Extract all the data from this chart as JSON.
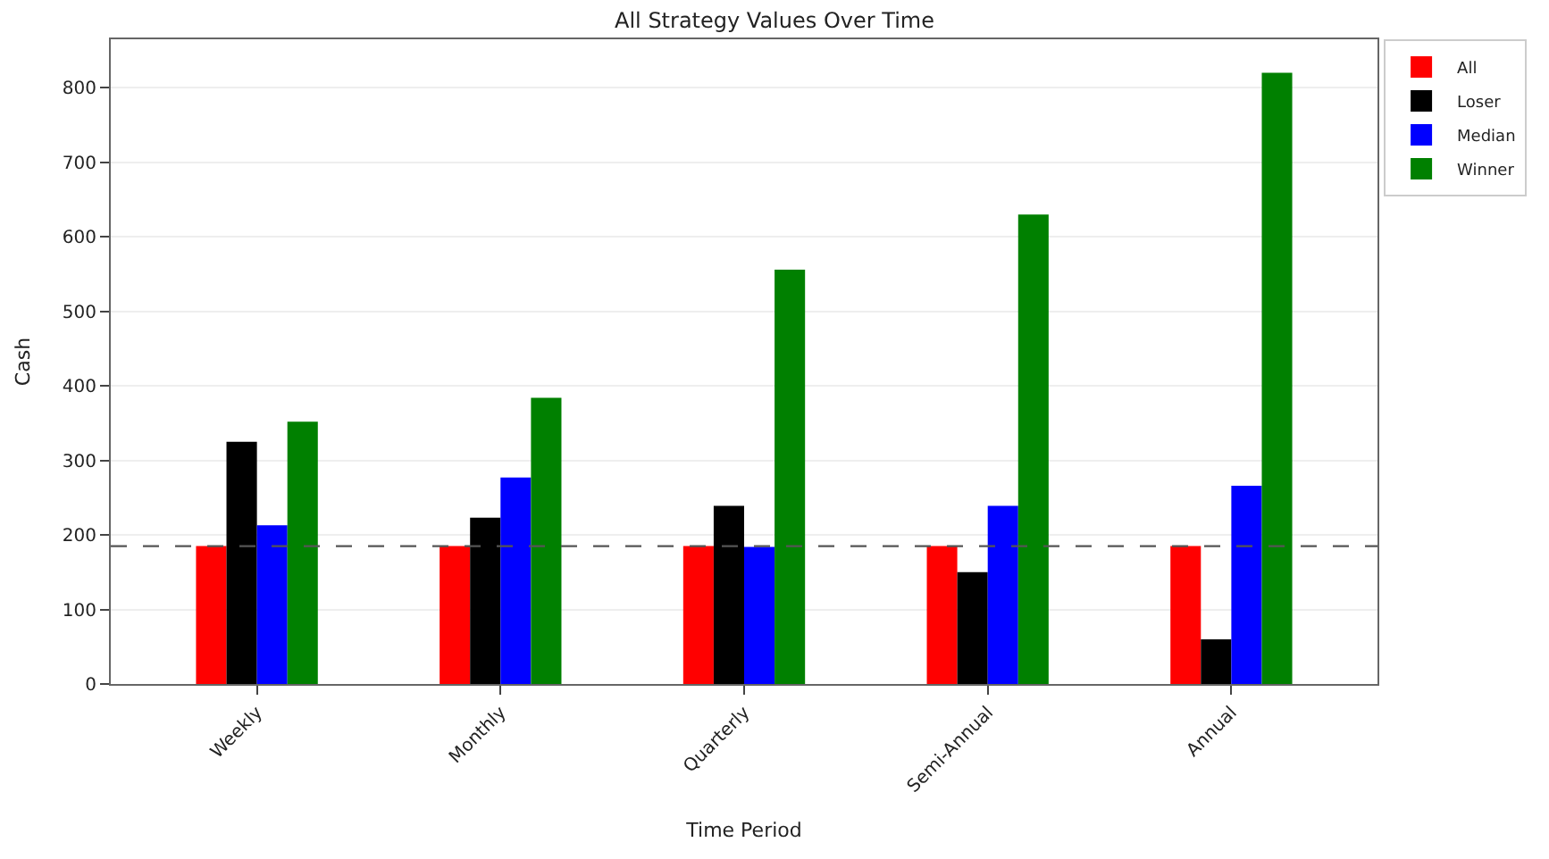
{
  "chart_data": {
    "type": "bar",
    "title": "All Strategy Values Over Time",
    "xlabel": "Time Period",
    "ylabel": "Cash",
    "categories": [
      "Weekly",
      "Monthly",
      "Quarterly",
      "Semi-Annual",
      "Annual"
    ],
    "series": [
      {
        "name": "All",
        "color": "#ff0000",
        "values": [
          185,
          185,
          185,
          185,
          185
        ]
      },
      {
        "name": "Loser",
        "color": "#000000",
        "values": [
          325,
          223,
          239,
          150,
          60
        ]
      },
      {
        "name": "Median",
        "color": "#0000ff",
        "values": [
          213,
          277,
          184,
          239,
          266
        ]
      },
      {
        "name": "Winner",
        "color": "#008000",
        "values": [
          352,
          384,
          556,
          630,
          820
        ]
      }
    ],
    "ylim": [
      0,
      865
    ],
    "yticks": [
      0,
      100,
      200,
      300,
      400,
      500,
      600,
      700,
      800
    ],
    "grid": "y",
    "legend": "top right",
    "ref_lines": [
      {
        "axis": "y",
        "value": 185,
        "color": "#555555",
        "line_style": "dashed"
      }
    ]
  }
}
